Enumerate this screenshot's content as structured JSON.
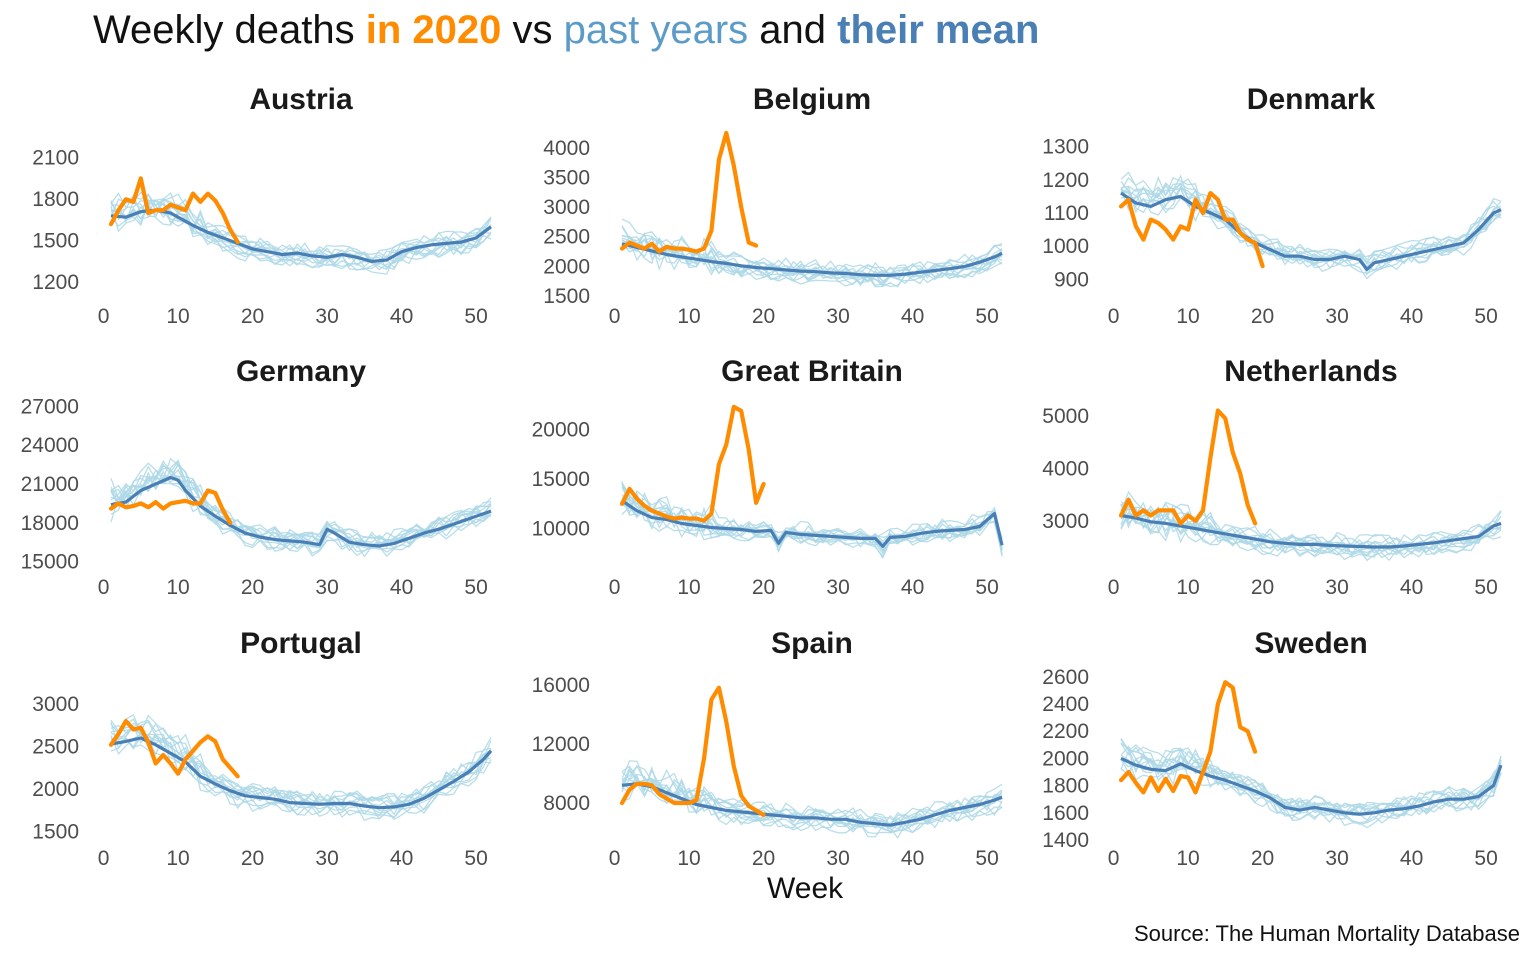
{
  "title": {
    "part1": "Weekly deaths ",
    "part2": "in 2020",
    "part3": " vs ",
    "part4": "past years",
    "part5": " and ",
    "part6": "their mean"
  },
  "x_label": "Week",
  "source": "Source: The Human Mortality Database",
  "colors": {
    "current_year": "#FF8C00",
    "past_years": "#ADD8E6",
    "mean": "#4A7FB5"
  },
  "chart_data": [
    {
      "type": "line",
      "title": "Austria",
      "xlim": [
        1,
        52
      ],
      "ylim": [
        1100,
        2300
      ],
      "x_ticks": [
        0,
        10,
        20,
        30,
        40,
        50
      ],
      "y_ticks": [
        1200,
        1500,
        1800,
        2100
      ],
      "series": [
        {
          "role": "current",
          "x": [
            1,
            2,
            3,
            4,
            5,
            6,
            7,
            8,
            9,
            10,
            11,
            12,
            13,
            14,
            15,
            16,
            17,
            18
          ],
          "values": [
            1620,
            1720,
            1800,
            1780,
            1950,
            1700,
            1720,
            1720,
            1760,
            1740,
            1720,
            1840,
            1780,
            1840,
            1790,
            1700,
            1580,
            1490
          ]
        },
        {
          "role": "mean",
          "x": [
            1,
            3,
            5,
            7,
            9,
            10,
            12,
            14,
            16,
            18,
            20,
            22,
            24,
            26,
            28,
            30,
            32,
            34,
            36,
            38,
            40,
            42,
            44,
            46,
            48,
            50,
            52
          ],
          "values": [
            1680,
            1670,
            1710,
            1720,
            1700,
            1670,
            1610,
            1560,
            1520,
            1480,
            1440,
            1420,
            1400,
            1410,
            1390,
            1380,
            1400,
            1380,
            1350,
            1360,
            1420,
            1450,
            1470,
            1480,
            1490,
            1520,
            1600
          ]
        }
      ]
    },
    {
      "type": "line",
      "title": "Belgium",
      "xlim": [
        1,
        52
      ],
      "ylim": [
        1500,
        4300
      ],
      "x_ticks": [
        0,
        10,
        20,
        30,
        40,
        50
      ],
      "y_ticks": [
        1500,
        2000,
        2500,
        3000,
        3500,
        4000
      ],
      "series": [
        {
          "role": "current",
          "x": [
            1,
            2,
            3,
            4,
            5,
            6,
            7,
            8,
            9,
            10,
            11,
            12,
            13,
            14,
            15,
            16,
            17,
            18,
            19
          ],
          "values": [
            2300,
            2400,
            2350,
            2300,
            2380,
            2250,
            2330,
            2300,
            2300,
            2280,
            2250,
            2300,
            2600,
            3800,
            4250,
            3700,
            3000,
            2400,
            2350
          ]
        },
        {
          "role": "mean",
          "x": [
            1,
            3,
            5,
            7,
            9,
            11,
            13,
            15,
            17,
            19,
            21,
            23,
            25,
            27,
            29,
            31,
            33,
            35,
            37,
            39,
            41,
            43,
            45,
            47,
            49,
            51,
            52
          ],
          "values": [
            2380,
            2320,
            2260,
            2200,
            2160,
            2120,
            2080,
            2050,
            2010,
            1980,
            1960,
            1940,
            1920,
            1910,
            1890,
            1880,
            1860,
            1850,
            1850,
            1870,
            1900,
            1930,
            1960,
            2000,
            2070,
            2160,
            2220
          ]
        }
      ]
    },
    {
      "type": "line",
      "title": "Denmark",
      "xlim": [
        1,
        52
      ],
      "ylim": [
        850,
        1350
      ],
      "x_ticks": [
        0,
        10,
        20,
        30,
        40,
        50
      ],
      "y_ticks": [
        900,
        1000,
        1100,
        1200,
        1300
      ],
      "series": [
        {
          "role": "current",
          "x": [
            1,
            2,
            3,
            4,
            5,
            6,
            7,
            8,
            9,
            10,
            11,
            12,
            13,
            14,
            15,
            16,
            17,
            18,
            19,
            20
          ],
          "values": [
            1120,
            1140,
            1060,
            1020,
            1080,
            1070,
            1050,
            1020,
            1060,
            1050,
            1140,
            1100,
            1160,
            1140,
            1080,
            1080,
            1040,
            1020,
            1010,
            940
          ]
        },
        {
          "role": "mean",
          "x": [
            1,
            3,
            5,
            7,
            9,
            11,
            13,
            15,
            17,
            19,
            21,
            23,
            25,
            27,
            29,
            31,
            33,
            34,
            35,
            37,
            39,
            41,
            43,
            45,
            47,
            49,
            51,
            52
          ],
          "values": [
            1160,
            1130,
            1120,
            1140,
            1150,
            1120,
            1100,
            1080,
            1040,
            1010,
            990,
            970,
            970,
            960,
            960,
            970,
            960,
            930,
            950,
            960,
            970,
            980,
            990,
            1000,
            1010,
            1050,
            1100,
            1110
          ]
        }
      ]
    },
    {
      "type": "line",
      "title": "Germany",
      "xlim": [
        1,
        52
      ],
      "ylim": [
        14500,
        27500
      ],
      "x_ticks": [
        0,
        10,
        20,
        30,
        40,
        50
      ],
      "y_ticks": [
        15000,
        18000,
        21000,
        24000,
        27000
      ],
      "series": [
        {
          "role": "current",
          "x": [
            1,
            2,
            3,
            4,
            5,
            6,
            7,
            8,
            9,
            10,
            11,
            12,
            13,
            14,
            15,
            16,
            17
          ],
          "values": [
            19100,
            19500,
            19200,
            19300,
            19500,
            19200,
            19600,
            19100,
            19500,
            19600,
            19700,
            19500,
            19500,
            20500,
            20300,
            19000,
            18000
          ]
        },
        {
          "role": "mean",
          "x": [
            1,
            3,
            5,
            7,
            9,
            10,
            11,
            13,
            15,
            17,
            19,
            21,
            23,
            25,
            27,
            29,
            30,
            31,
            33,
            35,
            37,
            39,
            41,
            43,
            45,
            47,
            49,
            51,
            52
          ],
          "values": [
            19400,
            19600,
            20500,
            21000,
            21500,
            21300,
            20500,
            19300,
            18500,
            17800,
            17200,
            16900,
            16700,
            16600,
            16500,
            16300,
            17500,
            17200,
            16500,
            16300,
            16200,
            16400,
            16800,
            17200,
            17500,
            17900,
            18300,
            18700,
            18900
          ]
        }
      ]
    },
    {
      "type": "line",
      "title": "Great Britain",
      "xlim": [
        1,
        52
      ],
      "ylim": [
        6000,
        23000
      ],
      "x_ticks": [
        0,
        10,
        20,
        30,
        40,
        50
      ],
      "y_ticks": [
        10000,
        15000,
        20000
      ],
      "series": [
        {
          "role": "current",
          "x": [
            1,
            2,
            3,
            4,
            5,
            6,
            7,
            8,
            9,
            10,
            11,
            12,
            13,
            14,
            15,
            16,
            17,
            18,
            19,
            20
          ],
          "values": [
            12500,
            14000,
            13000,
            12300,
            11800,
            11500,
            11200,
            11000,
            11100,
            11000,
            11000,
            10800,
            11500,
            16500,
            18500,
            22300,
            21900,
            18000,
            12600,
            14500
          ]
        },
        {
          "role": "mean",
          "x": [
            1,
            3,
            5,
            7,
            9,
            11,
            13,
            15,
            17,
            19,
            21,
            22,
            23,
            25,
            27,
            29,
            31,
            33,
            35,
            36,
            37,
            39,
            41,
            43,
            45,
            47,
            49,
            51,
            52
          ],
          "values": [
            12800,
            11800,
            11100,
            10900,
            10500,
            10300,
            10100,
            10000,
            9900,
            9700,
            9800,
            8500,
            9600,
            9400,
            9300,
            9200,
            9100,
            9000,
            9000,
            8200,
            9100,
            9200,
            9500,
            9700,
            9800,
            9900,
            10200,
            11500,
            8300
          ]
        }
      ]
    },
    {
      "type": "line",
      "title": "Netherlands",
      "xlim": [
        1,
        52
      ],
      "ylim": [
        2100,
        5300
      ],
      "x_ticks": [
        0,
        10,
        20,
        30,
        40,
        50
      ],
      "y_ticks": [
        3000,
        4000,
        5000
      ],
      "series": [
        {
          "role": "current",
          "x": [
            1,
            2,
            3,
            4,
            5,
            6,
            7,
            8,
            9,
            10,
            11,
            12,
            13,
            14,
            15,
            16,
            17,
            18,
            19
          ],
          "values": [
            3100,
            3400,
            3100,
            3200,
            3100,
            3200,
            3200,
            3200,
            2950,
            3100,
            3000,
            3200,
            4200,
            5100,
            4950,
            4300,
            3900,
            3300,
            2950
          ]
        },
        {
          "role": "mean",
          "x": [
            1,
            3,
            5,
            7,
            9,
            11,
            13,
            15,
            17,
            19,
            21,
            23,
            25,
            27,
            29,
            31,
            33,
            35,
            37,
            39,
            41,
            43,
            45,
            47,
            49,
            51,
            52
          ],
          "values": [
            3100,
            3050,
            2980,
            2950,
            2900,
            2850,
            2800,
            2750,
            2700,
            2650,
            2600,
            2570,
            2550,
            2550,
            2530,
            2520,
            2510,
            2500,
            2500,
            2520,
            2550,
            2580,
            2620,
            2660,
            2700,
            2900,
            2950
          ]
        }
      ]
    },
    {
      "type": "line",
      "title": "Portugal",
      "xlim": [
        1,
        52
      ],
      "ylim": [
        1400,
        3400
      ],
      "x_ticks": [
        0,
        10,
        20,
        30,
        40,
        50
      ],
      "y_ticks": [
        1500,
        2000,
        2500,
        3000
      ],
      "series": [
        {
          "role": "current",
          "x": [
            1,
            2,
            3,
            4,
            5,
            6,
            7,
            8,
            9,
            10,
            11,
            12,
            13,
            14,
            15,
            16,
            17,
            18
          ],
          "values": [
            2520,
            2650,
            2800,
            2700,
            2720,
            2550,
            2300,
            2400,
            2300,
            2180,
            2350,
            2450,
            2550,
            2620,
            2560,
            2350,
            2250,
            2150
          ]
        },
        {
          "role": "mean",
          "x": [
            1,
            3,
            5,
            7,
            9,
            11,
            13,
            15,
            17,
            19,
            21,
            23,
            25,
            27,
            29,
            31,
            33,
            35,
            37,
            39,
            41,
            43,
            45,
            47,
            49,
            51,
            52
          ],
          "values": [
            2530,
            2560,
            2600,
            2520,
            2420,
            2320,
            2150,
            2060,
            1980,
            1920,
            1900,
            1880,
            1840,
            1830,
            1820,
            1830,
            1830,
            1800,
            1780,
            1790,
            1820,
            1890,
            1990,
            2090,
            2200,
            2350,
            2450
          ]
        }
      ]
    },
    {
      "type": "line",
      "title": "Spain",
      "xlim": [
        1,
        52
      ],
      "ylim": [
        5500,
        17000
      ],
      "x_ticks": [
        0,
        10,
        20,
        30,
        40,
        50
      ],
      "y_ticks": [
        8000,
        12000,
        16000
      ],
      "series": [
        {
          "role": "current",
          "x": [
            1,
            2,
            3,
            4,
            5,
            6,
            7,
            8,
            9,
            10,
            11,
            12,
            13,
            14,
            15,
            16,
            17,
            18,
            19,
            20
          ],
          "values": [
            8000,
            8900,
            9300,
            9300,
            9200,
            8600,
            8300,
            8000,
            8000,
            8000,
            8200,
            11000,
            15000,
            15800,
            13500,
            10500,
            8500,
            7800,
            7500,
            7200
          ]
        },
        {
          "role": "mean",
          "x": [
            1,
            3,
            5,
            7,
            9,
            11,
            13,
            15,
            17,
            19,
            21,
            23,
            25,
            27,
            29,
            31,
            33,
            35,
            37,
            39,
            41,
            43,
            45,
            47,
            49,
            51,
            52
          ],
          "values": [
            9200,
            9300,
            9100,
            8700,
            8300,
            7900,
            7700,
            7500,
            7400,
            7300,
            7200,
            7100,
            7000,
            7000,
            6900,
            6900,
            6700,
            6600,
            6500,
            6700,
            6900,
            7200,
            7500,
            7700,
            7900,
            8200,
            8400
          ]
        }
      ]
    },
    {
      "type": "line",
      "title": "Sweden",
      "xlim": [
        1,
        52
      ],
      "ylim": [
        1400,
        2650
      ],
      "x_ticks": [
        0,
        10,
        20,
        30,
        40,
        50
      ],
      "y_ticks": [
        1400,
        1600,
        1800,
        2000,
        2200,
        2400,
        2600
      ],
      "series": [
        {
          "role": "current",
          "x": [
            1,
            2,
            3,
            4,
            5,
            6,
            7,
            8,
            9,
            10,
            11,
            12,
            13,
            14,
            15,
            16,
            17,
            18,
            19
          ],
          "values": [
            1840,
            1900,
            1820,
            1750,
            1860,
            1760,
            1850,
            1760,
            1870,
            1860,
            1750,
            1900,
            2050,
            2400,
            2560,
            2520,
            2230,
            2200,
            2050
          ]
        },
        {
          "role": "mean",
          "x": [
            1,
            3,
            5,
            7,
            9,
            11,
            13,
            15,
            17,
            19,
            21,
            23,
            25,
            27,
            29,
            31,
            33,
            35,
            37,
            39,
            41,
            43,
            45,
            47,
            49,
            51,
            52
          ],
          "values": [
            2000,
            1950,
            1920,
            1910,
            1960,
            1910,
            1870,
            1840,
            1800,
            1760,
            1710,
            1640,
            1620,
            1640,
            1620,
            1600,
            1590,
            1600,
            1620,
            1630,
            1650,
            1680,
            1700,
            1700,
            1720,
            1800,
            1950
          ]
        }
      ]
    }
  ]
}
